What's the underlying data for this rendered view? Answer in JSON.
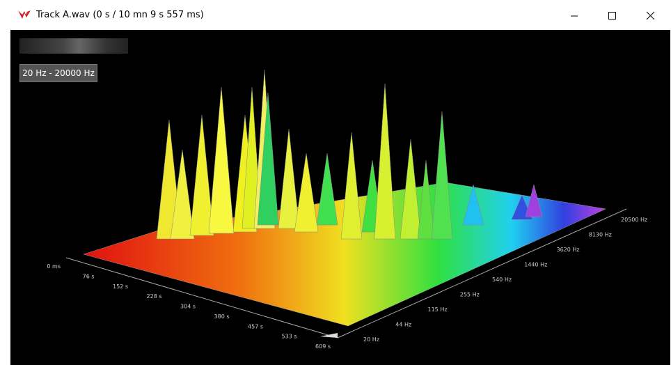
{
  "window": {
    "title": "Track A.wav (0 s / 10 mn 9 s 557 ms)"
  },
  "controls": {
    "range_label": "20 Hz - 20000 Hz"
  },
  "axes": {
    "time_ticks": [
      "0 ms",
      "76 s",
      "152 s",
      "228 s",
      "304 s",
      "380 s",
      "457 s",
      "533 s",
      "609 s"
    ],
    "frequency_ticks": [
      "20 Hz",
      "44 Hz",
      "115 Hz",
      "255 Hz",
      "540 Hz",
      "1440 Hz",
      "3620 Hz",
      "8130 Hz",
      "20500 Hz"
    ]
  }
}
